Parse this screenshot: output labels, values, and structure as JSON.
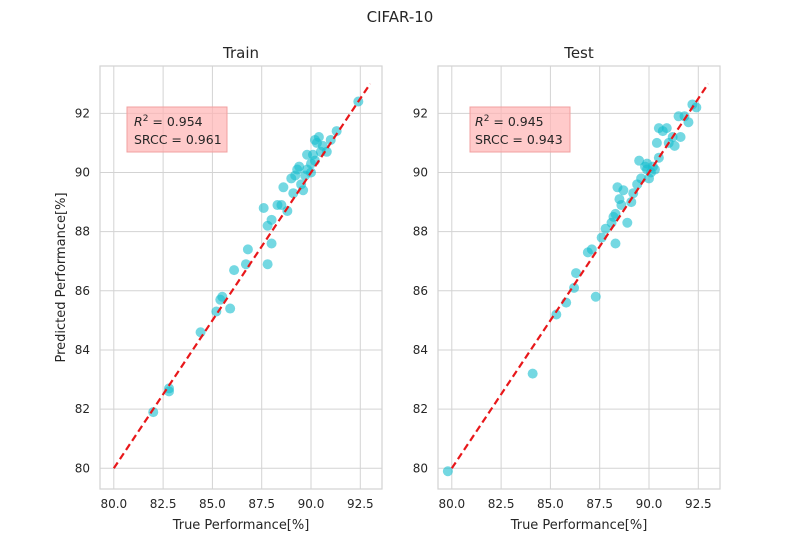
{
  "figure": {
    "suptitle": "CIFAR-10"
  },
  "style": {
    "point_color": "#17becf",
    "point_opacity": 0.6,
    "line_color": "#e8171a",
    "grid_color": "#d3d3d3",
    "annotation_fill": "#ffb3b3"
  },
  "chart_data": [
    {
      "type": "scatter",
      "title": "Train",
      "xlabel": "True Performance[%]",
      "ylabel": "Predicted Performance[%]",
      "xlim": [
        79.3,
        93.6
      ],
      "ylim": [
        79.3,
        93.6
      ],
      "xticks": [
        80.0,
        82.5,
        85.0,
        87.5,
        90.0,
        92.5
      ],
      "xtick_labels": [
        "80.0",
        "82.5",
        "85.0",
        "87.5",
        "90.0",
        "92.5"
      ],
      "yticks": [
        80,
        82,
        84,
        86,
        88,
        90,
        92
      ],
      "ytick_labels": [
        "80",
        "82",
        "84",
        "86",
        "88",
        "90",
        "92"
      ],
      "grid": true,
      "reference_line": {
        "style": "dashed",
        "from": [
          80,
          80
        ],
        "to": [
          93,
          93
        ]
      },
      "annotation": {
        "r2_label": "R",
        "r2_value": " = 0.954",
        "srcc": "SRCC = 0.961"
      },
      "x": [
        82.0,
        82.8,
        82.8,
        84.4,
        85.2,
        85.4,
        85.5,
        85.9,
        86.1,
        86.7,
        86.8,
        87.6,
        87.8,
        87.8,
        88.0,
        88.0,
        88.3,
        88.5,
        88.6,
        88.8,
        89.0,
        89.1,
        89.2,
        89.3,
        89.4,
        89.5,
        89.6,
        89.7,
        89.8,
        89.8,
        90.0,
        90.0,
        90.1,
        90.2,
        90.2,
        90.3,
        90.4,
        90.5,
        90.6,
        90.8,
        91.0,
        91.3,
        92.4
      ],
      "y": [
        81.9,
        82.6,
        82.7,
        84.6,
        85.3,
        85.7,
        85.8,
        85.4,
        86.7,
        86.9,
        87.4,
        88.8,
        86.9,
        88.2,
        88.4,
        87.6,
        88.9,
        88.9,
        89.5,
        88.7,
        89.8,
        89.3,
        89.9,
        90.1,
        90.2,
        89.6,
        89.4,
        89.9,
        90.1,
        90.6,
        90.0,
        90.3,
        90.6,
        91.1,
        90.4,
        91.0,
        91.2,
        90.7,
        90.9,
        90.7,
        91.1,
        91.4,
        92.4
      ]
    },
    {
      "type": "scatter",
      "title": "Test",
      "xlabel": "True Performance[%]",
      "ylabel": "",
      "xlim": [
        79.3,
        93.6
      ],
      "ylim": [
        79.3,
        93.6
      ],
      "xticks": [
        80.0,
        82.5,
        85.0,
        87.5,
        90.0,
        92.5
      ],
      "xtick_labels": [
        "80.0",
        "82.5",
        "85.0",
        "87.5",
        "90.0",
        "92.5"
      ],
      "yticks": [
        80,
        82,
        84,
        86,
        88,
        90,
        92
      ],
      "ytick_labels": [
        "80",
        "82",
        "84",
        "86",
        "88",
        "90",
        "92"
      ],
      "grid": true,
      "reference_line": {
        "style": "dashed",
        "from": [
          80,
          80
        ],
        "to": [
          93,
          93
        ]
      },
      "annotation": {
        "r2_label": "R",
        "r2_value": " = 0.945",
        "srcc": "SRCC = 0.943"
      },
      "x": [
        79.8,
        84.1,
        85.3,
        85.8,
        86.2,
        86.3,
        86.9,
        87.1,
        87.3,
        87.6,
        87.8,
        88.1,
        88.2,
        88.3,
        88.3,
        88.4,
        88.5,
        88.6,
        88.7,
        88.9,
        89.1,
        89.2,
        89.4,
        89.5,
        89.6,
        89.8,
        89.9,
        89.9,
        90.0,
        90.1,
        90.2,
        90.3,
        90.4,
        90.5,
        90.5,
        90.7,
        90.9,
        91.0,
        91.2,
        91.3,
        91.5,
        91.6,
        91.8,
        92.0,
        92.2,
        92.4
      ],
      "y": [
        79.9,
        83.2,
        85.2,
        85.6,
        86.1,
        86.6,
        87.3,
        87.4,
        85.8,
        87.8,
        88.1,
        88.3,
        88.5,
        88.6,
        87.6,
        89.5,
        89.1,
        88.9,
        89.4,
        88.3,
        89.0,
        89.3,
        89.6,
        90.4,
        89.8,
        90.2,
        90.1,
        90.3,
        89.8,
        90.0,
        90.2,
        90.1,
        91.0,
        90.5,
        91.5,
        91.4,
        91.5,
        91.0,
        91.2,
        90.9,
        91.9,
        91.2,
        91.9,
        91.7,
        92.3,
        92.2
      ]
    }
  ]
}
